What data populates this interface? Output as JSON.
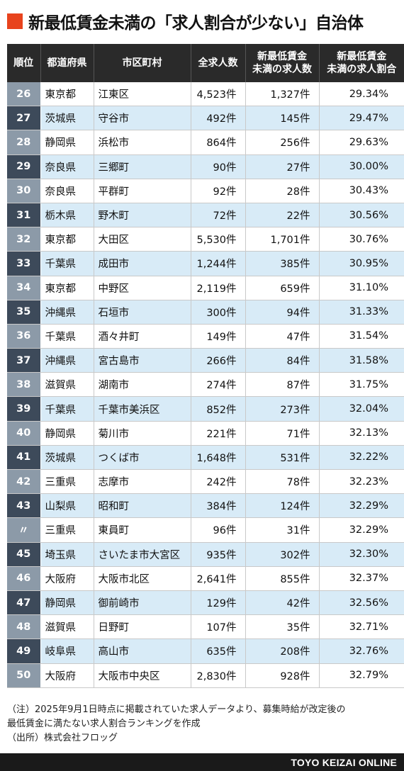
{
  "title": "新最低賃金未満の「求人割合が少ない」自治体",
  "headers": [
    "順位",
    "都道府県",
    "市区町村",
    "全求人数",
    "新最低賃金\n未満の求人数",
    "新最低賃金\n未満の求人割合"
  ],
  "rows": [
    [
      "26",
      "東京都",
      "江東区",
      "4,523件",
      "1,327件",
      "29.34%"
    ],
    [
      "27",
      "茨城県",
      "守谷市",
      "492件",
      "145件",
      "29.47%"
    ],
    [
      "28",
      "静岡県",
      "浜松市",
      "864件",
      "256件",
      "29.63%"
    ],
    [
      "29",
      "奈良県",
      "三郷町",
      "90件",
      "27件",
      "30.00%"
    ],
    [
      "30",
      "奈良県",
      "平群町",
      "92件",
      "28件",
      "30.43%"
    ],
    [
      "31",
      "栃木県",
      "野木町",
      "72件",
      "22件",
      "30.56%"
    ],
    [
      "32",
      "東京都",
      "大田区",
      "5,530件",
      "1,701件",
      "30.76%"
    ],
    [
      "33",
      "千葉県",
      "成田市",
      "1,244件",
      "385件",
      "30.95%"
    ],
    [
      "34",
      "東京都",
      "中野区",
      "2,119件",
      "659件",
      "31.10%"
    ],
    [
      "35",
      "沖縄県",
      "石垣市",
      "300件",
      "94件",
      "31.33%"
    ],
    [
      "36",
      "千葉県",
      "酒々井町",
      "149件",
      "47件",
      "31.54%"
    ],
    [
      "37",
      "沖縄県",
      "宮古島市",
      "266件",
      "84件",
      "31.58%"
    ],
    [
      "38",
      "滋賀県",
      "湖南市",
      "274件",
      "87件",
      "31.75%"
    ],
    [
      "39",
      "千葉県",
      "千葉市美浜区",
      "852件",
      "273件",
      "32.04%"
    ],
    [
      "40",
      "静岡県",
      "菊川市",
      "221件",
      "71件",
      "32.13%"
    ],
    [
      "41",
      "茨城県",
      "つくば市",
      "1,648件",
      "531件",
      "32.22%"
    ],
    [
      "42",
      "三重県",
      "志摩市",
      "242件",
      "78件",
      "32.23%"
    ],
    [
      "43",
      "山梨県",
      "昭和町",
      "384件",
      "124件",
      "32.29%"
    ],
    [
      "〃",
      "三重県",
      "東員町",
      "96件",
      "31件",
      "32.29%"
    ],
    [
      "45",
      "埼玉県",
      "さいたま市大宮区",
      "935件",
      "302件",
      "32.30%"
    ],
    [
      "46",
      "大阪府",
      "大阪市北区",
      "2,641件",
      "855件",
      "32.37%"
    ],
    [
      "47",
      "静岡県",
      "御前崎市",
      "129件",
      "42件",
      "32.56%"
    ],
    [
      "48",
      "滋賀県",
      "日野町",
      "107件",
      "35件",
      "32.71%"
    ],
    [
      "49",
      "岐阜県",
      "高山市",
      "635件",
      "208件",
      "32.76%"
    ],
    [
      "50",
      "大阪府",
      "大阪市中央区",
      "2,830件",
      "928件",
      "32.79%"
    ]
  ],
  "notes": [
    "（注）2025年9月1日時点に掲載されていた求人データより、募集時給が改定後の",
    "最低賃金に満たない求人割合ランキングを作成",
    "（出所）株式会社フロッグ"
  ],
  "footer": "TOYO KEIZAI ONLINE",
  "colors": {
    "accent": "#e8431d",
    "header_bg": "#2a2a2a",
    "row_alt": "#d8ebf7",
    "rank_light": "#8c9aa8",
    "rank_dark": "#3d4a5a"
  }
}
